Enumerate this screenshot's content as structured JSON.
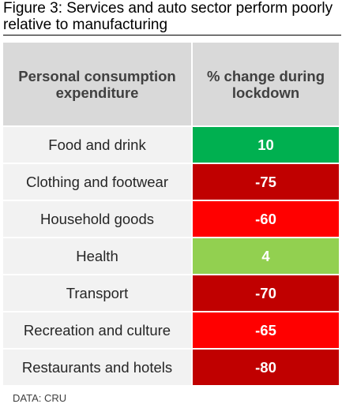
{
  "figure": {
    "title": "Figure 3: Services and auto sector perform poorly relative to manufacturing",
    "source": "DATA: CRU"
  },
  "chart_data": {
    "type": "table",
    "columns": [
      "Personal consumption expenditure",
      "% change during lockdown"
    ],
    "rows": [
      {
        "category": "Food and drink",
        "value": 10,
        "color": "#00b050"
      },
      {
        "category": "Clothing and footwear",
        "value": -75,
        "color": "#c00000"
      },
      {
        "category": "Household goods",
        "value": -60,
        "color": "#ff0000"
      },
      {
        "category": "Health",
        "value": 4,
        "color": "#92d050"
      },
      {
        "category": "Transport",
        "value": -70,
        "color": "#c00000"
      },
      {
        "category": "Recreation and culture",
        "value": -65,
        "color": "#ff0000"
      },
      {
        "category": "Restaurants and hotels",
        "value": -80,
        "color": "#c00000"
      }
    ]
  }
}
